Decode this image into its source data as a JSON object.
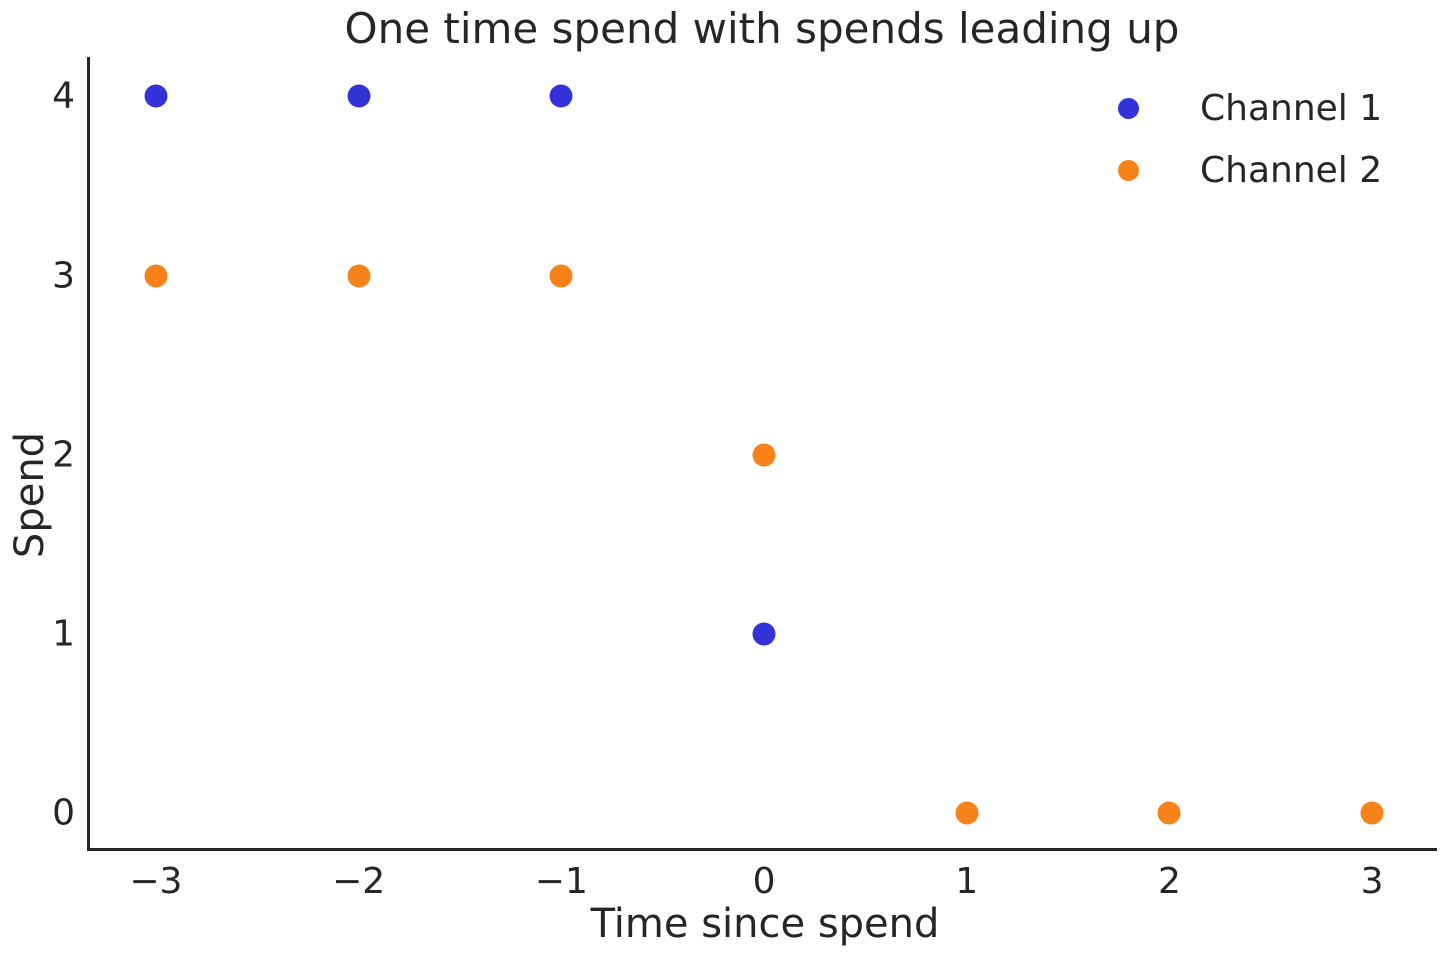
{
  "chart_data": {
    "type": "scatter",
    "title": "One time spend with spends leading up",
    "xlabel": "Time since spend",
    "ylabel": "Spend",
    "xlim": [
      -3.34,
      3.32
    ],
    "ylim": [
      -0.21,
      4.22
    ],
    "xticks": {
      "values": [
        -3,
        -2,
        -1,
        0,
        1,
        2,
        3
      ],
      "labels": [
        "−3",
        "−2",
        "−1",
        "0",
        "1",
        "2",
        "3"
      ]
    },
    "yticks": {
      "values": [
        0,
        1,
        2,
        3,
        4
      ],
      "labels": [
        "0",
        "1",
        "2",
        "3",
        "4"
      ]
    },
    "grid": false,
    "legend_position": "upper right",
    "marker_diameter_px": 23,
    "text_color": "#262626",
    "spine_color": "#262626",
    "series": [
      {
        "name": "Channel 1",
        "color": "#3232d8",
        "points": [
          [
            -3,
            4
          ],
          [
            -2,
            4
          ],
          [
            -1,
            4
          ],
          [
            0,
            1
          ]
        ]
      },
      {
        "name": "Channel 2",
        "color": "#f8821a",
        "points": [
          [
            -3,
            3
          ],
          [
            -2,
            3
          ],
          [
            -1,
            3
          ],
          [
            0,
            2
          ],
          [
            1,
            0
          ],
          [
            2,
            0
          ],
          [
            3,
            0
          ]
        ]
      }
    ]
  }
}
